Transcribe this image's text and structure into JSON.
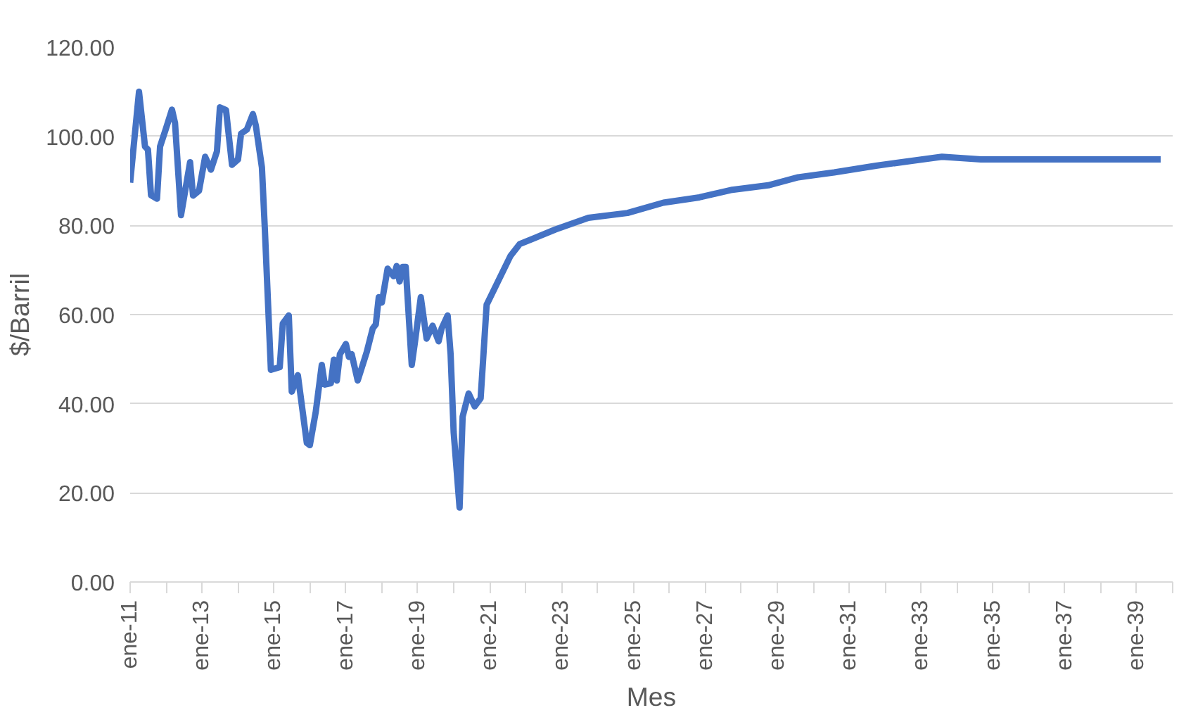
{
  "chart_data": {
    "type": "line",
    "xlabel": "Mes",
    "ylabel": "$/Barril",
    "x": [
      "2011-01",
      "2011-04",
      "2011-06",
      "2011-07",
      "2011-08",
      "2011-10",
      "2011-11",
      "2012-01",
      "2012-03",
      "2012-04",
      "2012-06",
      "2012-09",
      "2012-10",
      "2012-12",
      "2013-02",
      "2013-04",
      "2013-06",
      "2013-07",
      "2013-09",
      "2013-11",
      "2014-01",
      "2014-02",
      "2014-04",
      "2014-06",
      "2014-07",
      "2014-09",
      "2014-10",
      "2014-12",
      "2015-03",
      "2015-04",
      "2015-06",
      "2015-07",
      "2015-09",
      "2015-12",
      "2016-01",
      "2016-03",
      "2016-05",
      "2016-06",
      "2016-08",
      "2016-09",
      "2016-10",
      "2016-11",
      "2017-01",
      "2017-02",
      "2017-03",
      "2017-05",
      "2017-08",
      "2017-10",
      "2017-11",
      "2017-12",
      "2018-01",
      "2018-03",
      "2018-05",
      "2018-06",
      "2018-07",
      "2018-08",
      "2018-09",
      "2018-11",
      "2018-12",
      "2019-02",
      "2019-04",
      "2019-06",
      "2019-08",
      "2019-09",
      "2019-11",
      "2019-12",
      "2020-01",
      "2020-03",
      "2020-04",
      "2020-06",
      "2020-08",
      "2020-10",
      "2020-12",
      "2021-08",
      "2021-11",
      "2022-11",
      "2023-10",
      "2024-11",
      "2025-11",
      "2026-11",
      "2027-10",
      "2028-10",
      "2029-08",
      "2030-08",
      "2031-10",
      "2032-10",
      "2033-08",
      "2034-09",
      "2039-09"
    ],
    "series": [
      {
        "color": "#4472c4",
        "values": [
          89.6,
          110,
          97.7,
          97,
          86.8,
          86,
          97.7,
          101.8,
          106,
          103,
          82.3,
          94.2,
          86.7,
          87.8,
          95.4,
          92.5,
          96.6,
          106.5,
          105.9,
          93.6,
          94.8,
          100.6,
          101.5,
          105,
          102.4,
          93,
          79,
          47.6,
          48.2,
          58,
          59.8,
          42.7,
          46.4,
          31.2,
          30.7,
          38.2,
          48.7,
          44.3,
          44.6,
          49.9,
          45.2,
          51.1,
          53.4,
          50.5,
          51.1,
          45.2,
          51.6,
          56.9,
          57.8,
          63.9,
          62.7,
          70.3,
          68.6,
          70.9,
          67.4,
          70.7,
          70.7,
          48.7,
          53.4,
          63.9,
          54.6,
          57.5,
          54,
          56.9,
          59.8,
          51.1,
          33.6,
          16.7,
          37.1,
          42.3,
          39.4,
          41.2,
          62.2,
          73.2,
          75.8,
          79.1,
          81.7,
          82.8,
          85.1,
          86.3,
          88,
          89,
          90.8,
          91.9,
          93.4,
          94.5,
          95.4,
          94.8,
          94.8
        ]
      }
    ],
    "xlim": [
      "2011-01",
      "2040-01"
    ],
    "xticks": [
      {
        "value": "2011-01",
        "label": "ene-11"
      },
      {
        "value": "2012-01",
        "label": null
      },
      {
        "value": "2013-01",
        "label": "ene-13"
      },
      {
        "value": "2014-01",
        "label": null
      },
      {
        "value": "2015-01",
        "label": "ene-15"
      },
      {
        "value": "2016-01",
        "label": null
      },
      {
        "value": "2017-01",
        "label": "ene-17"
      },
      {
        "value": "2018-01",
        "label": null
      },
      {
        "value": "2019-01",
        "label": "ene-19"
      },
      {
        "value": "2020-01",
        "label": null
      },
      {
        "value": "2021-01",
        "label": "ene-21"
      },
      {
        "value": "2022-01",
        "label": null
      },
      {
        "value": "2023-01",
        "label": "ene-23"
      },
      {
        "value": "2024-01",
        "label": null
      },
      {
        "value": "2025-01",
        "label": "ene-25"
      },
      {
        "value": "2026-01",
        "label": null
      },
      {
        "value": "2027-01",
        "label": "ene-27"
      },
      {
        "value": "2028-01",
        "label": null
      },
      {
        "value": "2029-01",
        "label": "ene-29"
      },
      {
        "value": "2030-01",
        "label": null
      },
      {
        "value": "2031-01",
        "label": "ene-31"
      },
      {
        "value": "2032-01",
        "label": null
      },
      {
        "value": "2033-01",
        "label": "ene-33"
      },
      {
        "value": "2034-01",
        "label": null
      },
      {
        "value": "2035-01",
        "label": "ene-35"
      },
      {
        "value": "2036-01",
        "label": null
      },
      {
        "value": "2037-01",
        "label": "ene-37"
      },
      {
        "value": "2038-01",
        "label": null
      },
      {
        "value": "2039-01",
        "label": "ene-39"
      },
      {
        "value": "2040-01",
        "label": null
      }
    ],
    "ylim": [
      0,
      120
    ],
    "yticks": [
      {
        "value": 0,
        "label": "0.00"
      },
      {
        "value": 20,
        "label": "20.00"
      },
      {
        "value": 40,
        "label": "40.00"
      },
      {
        "value": 60,
        "label": "60.00"
      },
      {
        "value": 80,
        "label": "80.00"
      },
      {
        "value": 100,
        "label": "100.00"
      },
      {
        "value": 120,
        "label": "120.00"
      }
    ],
    "grid": "y",
    "line_style": "solid"
  }
}
